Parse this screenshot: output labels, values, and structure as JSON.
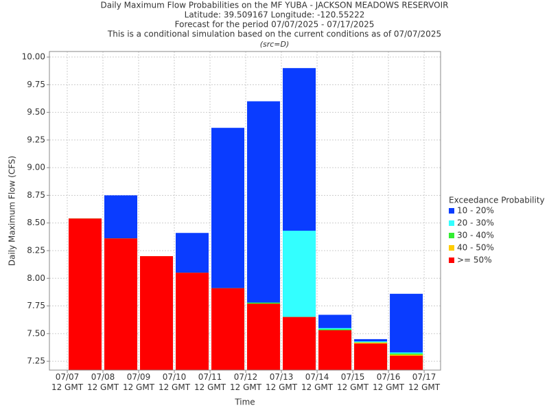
{
  "chart_data": {
    "type": "bar",
    "title_lines": [
      "Daily Maximum Flow Probabilities on the MF YUBA - JACKSON MEADOWS RESERVOIR",
      "Latitude: 39.509167 Longitude: -120.55222",
      "Forecast for the period 07/07/2025 - 07/17/2025",
      "This is a conditional simulation based on the current conditions as of 07/07/2025"
    ],
    "subtitle": "(src=D)",
    "x_label": "Time",
    "y_label": "Daily Maximum Flow (CFS)",
    "legend_title": "Exceedance Probability",
    "legend": "right",
    "x": [
      0.5,
      1.5,
      2.5,
      3.5,
      4.5,
      5.5,
      6.5,
      7.5,
      8.5,
      9.5
    ],
    "xlim": [
      -0.5,
      10.46
    ],
    "xticks": [
      {
        "value": 0,
        "label": "07/07\n12 GMT"
      },
      {
        "value": 1,
        "label": "07/08\n12 GMT"
      },
      {
        "value": 2,
        "label": "07/09\n12 GMT"
      },
      {
        "value": 3,
        "label": "07/10\n12 GMT"
      },
      {
        "value": 4,
        "label": "07/11\n12 GMT"
      },
      {
        "value": 5,
        "label": "07/12\n12 GMT"
      },
      {
        "value": 6,
        "label": "07/13\n12 GMT"
      },
      {
        "value": 7,
        "label": "07/14\n12 GMT"
      },
      {
        "value": 8,
        "label": "07/15\n12 GMT"
      },
      {
        "value": 9,
        "label": "07/16\n12 GMT"
      },
      {
        "value": 10,
        "label": "07/17\n12 GMT"
      }
    ],
    "ylim": [
      7.17,
      10.05
    ],
    "yticks": [
      7.25,
      {
        "value": 7.5,
        "label": "7.50"
      },
      7.75,
      {
        "value": 8,
        "label": "8.00"
      },
      8.25,
      {
        "value": 8.5,
        "label": "8.50"
      },
      8.75,
      {
        "value": 9,
        "label": "9.00"
      },
      9.25,
      {
        "value": 9.5,
        "label": "9.50"
      },
      9.75,
      {
        "value": 10,
        "label": "10.00"
      }
    ],
    "grid": true,
    "series": [
      {
        "name": "10 - 20%",
        "color": "#0a3cff",
        "values": [
          8.54,
          8.75,
          8.2,
          8.41,
          9.36,
          9.6,
          9.9,
          7.67,
          7.45,
          7.86
        ]
      },
      {
        "name": "20 - 30%",
        "color": "#33ffff",
        "values": [
          8.54,
          8.36,
          8.2,
          8.05,
          7.91,
          7.78,
          8.43,
          7.55,
          7.43,
          7.33
        ]
      },
      {
        "name": "30 - 40%",
        "color": "#33ee33",
        "values": [
          8.54,
          8.36,
          8.2,
          8.05,
          7.91,
          7.78,
          7.65,
          7.54,
          7.42,
          7.32
        ]
      },
      {
        "name": "40 - 50%",
        "color": "#ffcc00",
        "values": [
          8.54,
          8.36,
          8.2,
          8.05,
          7.91,
          7.77,
          7.65,
          7.53,
          7.42,
          7.31
        ]
      },
      {
        "name": ">= 50%",
        "color": "#ff0000",
        "values": [
          8.54,
          8.36,
          8.2,
          8.05,
          7.91,
          7.77,
          7.65,
          7.53,
          7.41,
          7.3
        ]
      }
    ]
  }
}
